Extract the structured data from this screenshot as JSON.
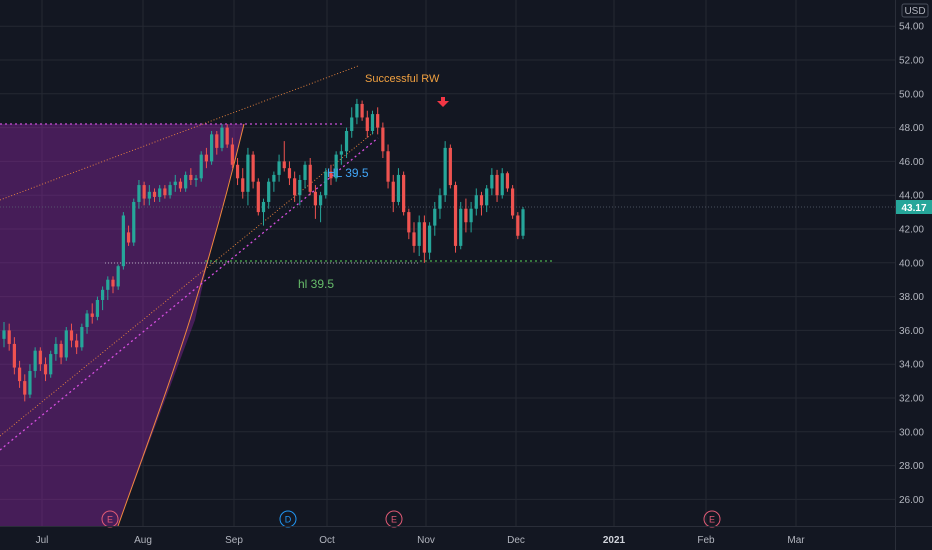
{
  "chart_data": {
    "type": "candlestick",
    "currency_badge": "USD",
    "ylim": [
      24,
      55
    ],
    "y_ticks": [
      "26.00",
      "28.00",
      "30.00",
      "32.00",
      "34.00",
      "36.00",
      "38.00",
      "40.00",
      "42.00",
      "44.00",
      "46.00",
      "48.00",
      "50.00",
      "52.00",
      "54.00"
    ],
    "x_ticks": [
      "Jul",
      "Aug",
      "Sep",
      "Oct",
      "Nov",
      "Dec",
      "2021",
      "Feb",
      "Mar"
    ],
    "last_price": "43.17",
    "colors": {
      "up": "#26a69a",
      "down": "#ef5350",
      "background": "#131722",
      "grid": "#242833",
      "zone": "#9c27b0"
    },
    "candles": [
      [
        35.5,
        36.5,
        35.0,
        36.0
      ],
      [
        36.0,
        36.4,
        34.8,
        35.2
      ],
      [
        35.2,
        35.6,
        33.4,
        33.8
      ],
      [
        33.8,
        34.2,
        32.6,
        33.0
      ],
      [
        33.0,
        33.4,
        31.8,
        32.2
      ],
      [
        32.2,
        34.0,
        32.0,
        33.6
      ],
      [
        33.6,
        35.0,
        33.2,
        34.8
      ],
      [
        34.8,
        35.0,
        33.6,
        34.0
      ],
      [
        34.0,
        34.4,
        33.0,
        33.4
      ],
      [
        33.4,
        34.8,
        33.2,
        34.6
      ],
      [
        34.6,
        35.6,
        34.2,
        35.2
      ],
      [
        35.2,
        35.4,
        34.0,
        34.4
      ],
      [
        34.4,
        36.2,
        34.2,
        36.0
      ],
      [
        36.0,
        36.4,
        35.0,
        35.4
      ],
      [
        35.4,
        35.8,
        34.6,
        35.0
      ],
      [
        35.0,
        36.4,
        34.8,
        36.2
      ],
      [
        36.2,
        37.2,
        35.8,
        37.0
      ],
      [
        37.0,
        37.6,
        36.4,
        36.8
      ],
      [
        36.8,
        38.0,
        36.6,
        37.8
      ],
      [
        37.8,
        38.6,
        37.2,
        38.4
      ],
      [
        38.4,
        39.2,
        37.8,
        39.0
      ],
      [
        39.0,
        39.2,
        38.2,
        38.6
      ],
      [
        38.6,
        39.9,
        38.4,
        39.8
      ],
      [
        39.8,
        43.0,
        39.6,
        42.8
      ],
      [
        41.8,
        42.2,
        41.0,
        41.2
      ],
      [
        41.2,
        43.8,
        41.0,
        43.6
      ],
      [
        43.6,
        44.9,
        43.2,
        44.6
      ],
      [
        44.6,
        44.8,
        43.4,
        43.8
      ],
      [
        43.8,
        44.6,
        43.4,
        44.2
      ],
      [
        44.2,
        44.4,
        43.6,
        43.9
      ],
      [
        43.9,
        44.6,
        43.6,
        44.4
      ],
      [
        44.4,
        44.6,
        43.8,
        44.0
      ],
      [
        44.0,
        44.8,
        43.8,
        44.6
      ],
      [
        44.6,
        45.2,
        44.2,
        44.8
      ],
      [
        44.8,
        45.0,
        44.2,
        44.4
      ],
      [
        44.4,
        45.4,
        44.2,
        45.2
      ],
      [
        45.2,
        45.6,
        44.6,
        44.9
      ],
      [
        44.9,
        45.2,
        44.5,
        45.0
      ],
      [
        45.0,
        46.6,
        44.8,
        46.4
      ],
      [
        46.4,
        46.8,
        45.6,
        46.0
      ],
      [
        46.0,
        47.8,
        45.8,
        47.6
      ],
      [
        47.6,
        47.8,
        46.4,
        46.8
      ],
      [
        46.8,
        48.2,
        46.6,
        48.0
      ],
      [
        48.0,
        48.2,
        46.8,
        47.0
      ],
      [
        47.0,
        47.4,
        45.6,
        45.8
      ],
      [
        45.8,
        46.2,
        44.6,
        45.0
      ],
      [
        45.0,
        45.6,
        43.8,
        44.2
      ],
      [
        44.2,
        46.8,
        43.4,
        46.4
      ],
      [
        46.4,
        46.6,
        44.4,
        44.8
      ],
      [
        44.8,
        45.0,
        42.8,
        43.0
      ],
      [
        43.0,
        43.8,
        42.2,
        43.6
      ],
      [
        43.6,
        45.0,
        43.2,
        44.8
      ],
      [
        44.8,
        45.4,
        44.2,
        45.2
      ],
      [
        45.2,
        46.4,
        44.8,
        46.0
      ],
      [
        46.0,
        47.2,
        45.4,
        45.6
      ],
      [
        45.6,
        46.0,
        44.6,
        45.0
      ],
      [
        45.0,
        45.4,
        43.6,
        44.0
      ],
      [
        44.0,
        45.2,
        43.4,
        44.9
      ],
      [
        44.9,
        46.0,
        44.4,
        45.8
      ],
      [
        45.8,
        46.2,
        44.0,
        44.2
      ],
      [
        44.2,
        44.6,
        42.6,
        43.4
      ],
      [
        43.4,
        44.2,
        42.4,
        44.0
      ],
      [
        44.0,
        45.6,
        43.8,
        45.4
      ],
      [
        45.4,
        45.8,
        44.6,
        45.0
      ],
      [
        45.0,
        46.6,
        44.8,
        46.4
      ],
      [
        46.4,
        47.0,
        45.8,
        46.6
      ],
      [
        46.6,
        48.0,
        46.2,
        47.8
      ],
      [
        47.8,
        49.2,
        47.4,
        48.6
      ],
      [
        48.6,
        49.7,
        48.2,
        49.4
      ],
      [
        49.4,
        49.6,
        48.4,
        48.6
      ],
      [
        48.6,
        49.0,
        47.4,
        47.8
      ],
      [
        47.8,
        49.0,
        47.6,
        48.8
      ],
      [
        48.8,
        49.2,
        47.6,
        48.0
      ],
      [
        48.0,
        48.3,
        46.2,
        46.6
      ],
      [
        46.6,
        47.0,
        44.4,
        44.8
      ],
      [
        44.8,
        45.2,
        43.0,
        43.6
      ],
      [
        43.6,
        45.6,
        43.4,
        45.2
      ],
      [
        45.2,
        45.4,
        42.8,
        43.0
      ],
      [
        43.0,
        43.2,
        41.4,
        41.8
      ],
      [
        41.8,
        42.4,
        40.6,
        41.0
      ],
      [
        41.0,
        42.8,
        40.4,
        42.4
      ],
      [
        42.4,
        42.8,
        40.0,
        40.6
      ],
      [
        40.6,
        42.4,
        40.2,
        42.2
      ],
      [
        42.2,
        43.6,
        41.6,
        43.2
      ],
      [
        43.2,
        44.4,
        42.6,
        44.0
      ],
      [
        44.0,
        47.2,
        43.6,
        46.8
      ],
      [
        46.8,
        47.0,
        44.4,
        44.6
      ],
      [
        44.6,
        44.8,
        40.6,
        41.0
      ],
      [
        41.0,
        43.6,
        40.8,
        43.2
      ],
      [
        43.2,
        43.8,
        41.8,
        42.4
      ],
      [
        42.4,
        43.6,
        41.8,
        43.2
      ],
      [
        43.2,
        44.4,
        42.8,
        44.0
      ],
      [
        44.0,
        44.2,
        42.8,
        43.4
      ],
      [
        43.4,
        44.6,
        43.0,
        44.4
      ],
      [
        44.4,
        45.6,
        44.0,
        45.2
      ],
      [
        45.2,
        45.5,
        43.6,
        44.0
      ],
      [
        44.0,
        45.6,
        43.8,
        45.3
      ],
      [
        45.3,
        45.4,
        44.2,
        44.4
      ],
      [
        44.4,
        44.6,
        42.6,
        42.8
      ],
      [
        42.8,
        43.0,
        41.4,
        41.6
      ],
      [
        41.6,
        43.3,
        41.4,
        43.17
      ]
    ]
  },
  "annotations": {
    "successful_rw": "Successful RW",
    "hl_upper": "HL 39.5",
    "hl_lower": "hl 39.5"
  },
  "event_markers": [
    {
      "letter": "E",
      "color": "#e05a75"
    },
    {
      "letter": "D",
      "color": "#2196f3"
    },
    {
      "letter": "E",
      "color": "#e05a75"
    },
    {
      "letter": "E",
      "color": "#e05a75"
    }
  ]
}
